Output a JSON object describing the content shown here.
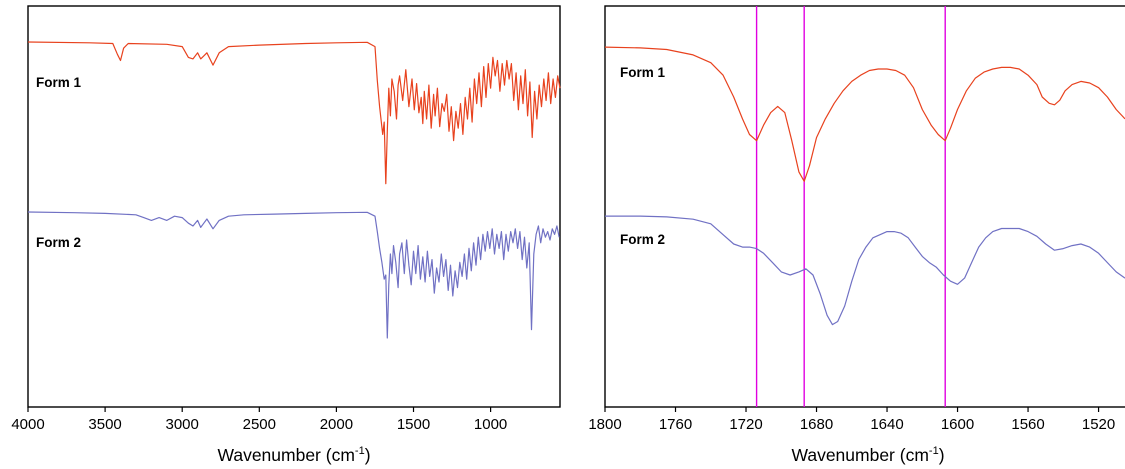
{
  "chart_data": [
    {
      "type": "line",
      "xlabel": "Wavenumber (cm",
      "xlabel_sup": "-1",
      "xlabel_close": ")",
      "xlim": [
        4000,
        550
      ],
      "xticks": [
        4000,
        3500,
        3000,
        2500,
        2000,
        1500,
        1000
      ],
      "ylabel": "",
      "grid": false,
      "series": [
        {
          "label": "Form 1",
          "color": "#e8421e",
          "x": [
            4000,
            3600,
            3450,
            3420,
            3400,
            3380,
            3350,
            3100,
            3000,
            2960,
            2930,
            2900,
            2880,
            2860,
            2840,
            2800,
            2760,
            2700,
            2500,
            2200,
            2000,
            1800,
            1750,
            1735,
            1720,
            1700,
            1690,
            1680,
            1670,
            1660,
            1650,
            1640,
            1625,
            1610,
            1600,
            1590,
            1570,
            1550,
            1530,
            1510,
            1495,
            1480,
            1465,
            1450,
            1440,
            1430,
            1415,
            1400,
            1385,
            1370,
            1360,
            1345,
            1330,
            1315,
            1300,
            1285,
            1270,
            1255,
            1240,
            1225,
            1210,
            1195,
            1180,
            1165,
            1150,
            1135,
            1120,
            1105,
            1090,
            1075,
            1060,
            1045,
            1030,
            1015,
            1000,
            985,
            970,
            955,
            940,
            925,
            910,
            895,
            880,
            865,
            850,
            835,
            820,
            805,
            790,
            775,
            760,
            745,
            730,
            715,
            700,
            685,
            670,
            655,
            640,
            625,
            610,
            595,
            580,
            565,
            550
          ],
          "y": [
            100,
            99.5,
            99,
            92,
            88,
            96,
            99,
            98.5,
            97,
            90,
            89,
            93,
            89,
            91,
            93,
            85,
            93,
            97,
            98,
            99,
            99.5,
            99.8,
            97,
            75,
            58,
            40,
            48,
            8,
            42,
            70,
            52,
            76,
            68,
            50,
            72,
            78,
            62,
            82,
            58,
            76,
            56,
            73,
            54,
            64,
            47,
            68,
            50,
            72,
            44,
            66,
            52,
            70,
            45,
            60,
            55,
            66,
            42,
            58,
            36,
            55,
            44,
            60,
            40,
            64,
            50,
            70,
            48,
            76,
            60,
            80,
            58,
            84,
            64,
            86,
            70,
            90,
            78,
            88,
            68,
            86,
            72,
            88,
            76,
            86,
            62,
            80,
            56,
            78,
            60,
            82,
            52,
            74,
            38,
            68,
            50,
            72,
            58,
            76,
            62,
            80,
            60,
            76,
            64,
            78,
            70
          ]
        },
        {
          "label": "Form 2",
          "color": "#7071c4",
          "x": [
            4000,
            3700,
            3500,
            3300,
            3250,
            3200,
            3150,
            3100,
            3050,
            3000,
            2960,
            2930,
            2900,
            2880,
            2860,
            2840,
            2800,
            2760,
            2700,
            2600,
            2400,
            2200,
            2000,
            1800,
            1750,
            1735,
            1720,
            1705,
            1690,
            1680,
            1670,
            1660,
            1650,
            1640,
            1630,
            1615,
            1600,
            1590,
            1575,
            1560,
            1545,
            1530,
            1515,
            1500,
            1485,
            1470,
            1455,
            1440,
            1425,
            1410,
            1395,
            1380,
            1365,
            1350,
            1335,
            1320,
            1305,
            1290,
            1275,
            1260,
            1245,
            1230,
            1215,
            1200,
            1185,
            1170,
            1155,
            1140,
            1125,
            1110,
            1095,
            1080,
            1065,
            1050,
            1035,
            1020,
            1005,
            990,
            975,
            960,
            945,
            930,
            915,
            900,
            885,
            870,
            855,
            840,
            825,
            810,
            795,
            780,
            765,
            750,
            735,
            720,
            705,
            690,
            675,
            660,
            645,
            630,
            615,
            600,
            585,
            570,
            555
          ],
          "y": [
            100,
            99.5,
            99,
            98,
            96,
            94,
            96,
            94,
            97,
            96,
            92,
            90,
            94,
            89,
            92,
            95,
            88,
            94,
            97,
            98,
            98.5,
            99,
            99.5,
            99.8,
            97,
            86,
            74,
            64,
            52,
            55,
            10,
            48,
            70,
            56,
            76,
            64,
            46,
            70,
            78,
            56,
            80,
            62,
            48,
            72,
            56,
            76,
            52,
            68,
            50,
            72,
            54,
            66,
            42,
            60,
            50,
            70,
            54,
            66,
            44,
            62,
            40,
            58,
            46,
            64,
            54,
            70,
            52,
            74,
            58,
            78,
            62,
            82,
            66,
            84,
            72,
            86,
            74,
            88,
            70,
            84,
            74,
            86,
            66,
            84,
            72,
            86,
            78,
            88,
            74,
            86,
            66,
            82,
            60,
            78,
            16,
            70,
            84,
            90,
            78,
            88,
            82,
            86,
            80,
            88,
            84,
            90,
            82
          ]
        }
      ]
    },
    {
      "type": "line",
      "xlabel": "Wavenumber (cm",
      "xlabel_sup": "-1",
      "xlabel_close": ")",
      "xlim": [
        1800,
        1505
      ],
      "xticks": [
        1800,
        1760,
        1720,
        1680,
        1640,
        1600,
        1560,
        1520
      ],
      "ylabel": "",
      "grid": false,
      "vertical_markers": [
        1714,
        1687,
        1607
      ],
      "marker_color": "#e000e0",
      "series": [
        {
          "label": "Form 1",
          "color": "#e8421e",
          "x": [
            1800,
            1780,
            1765,
            1750,
            1740,
            1733,
            1727,
            1722,
            1718,
            1714,
            1710,
            1706,
            1702,
            1698,
            1694,
            1690,
            1687,
            1684,
            1680,
            1675,
            1670,
            1665,
            1660,
            1655,
            1650,
            1645,
            1640,
            1635,
            1630,
            1625,
            1620,
            1615,
            1611,
            1607,
            1604,
            1600,
            1595,
            1590,
            1585,
            1580,
            1575,
            1570,
            1565,
            1560,
            1555,
            1552,
            1548,
            1545,
            1542,
            1539,
            1535,
            1530,
            1525,
            1520,
            1515,
            1510,
            1505
          ],
          "y": [
            98,
            97.5,
            96.5,
            93,
            88,
            80,
            66,
            52,
            42,
            38,
            48,
            56,
            60,
            56,
            38,
            18,
            12,
            22,
            40,
            52,
            62,
            70,
            76,
            80,
            83,
            84,
            84,
            83,
            80,
            72,
            58,
            48,
            42,
            38,
            46,
            58,
            70,
            78,
            82,
            84,
            85,
            85,
            84,
            80,
            74,
            66,
            62,
            61,
            64,
            70,
            74,
            76,
            75,
            72,
            66,
            58,
            52
          ]
        },
        {
          "label": "Form 2",
          "color": "#7071c4",
          "x": [
            1800,
            1780,
            1765,
            1750,
            1740,
            1733,
            1727,
            1722,
            1718,
            1714,
            1710,
            1705,
            1700,
            1695,
            1690,
            1686,
            1682,
            1678,
            1674,
            1671,
            1668,
            1664,
            1660,
            1656,
            1652,
            1648,
            1644,
            1640,
            1636,
            1632,
            1628,
            1624,
            1620,
            1616,
            1612,
            1608,
            1604,
            1600,
            1596,
            1592,
            1588,
            1584,
            1580,
            1575,
            1570,
            1565,
            1560,
            1555,
            1550,
            1545,
            1540,
            1535,
            1530,
            1525,
            1520,
            1515,
            1510,
            1505
          ],
          "y": [
            98,
            98,
            97.5,
            96,
            93,
            86,
            80,
            78,
            78,
            77,
            74,
            68,
            62,
            60,
            62,
            64,
            60,
            48,
            34,
            28,
            30,
            40,
            56,
            70,
            78,
            84,
            86,
            88,
            88,
            87,
            84,
            78,
            72,
            68,
            65,
            60,
            56,
            54,
            58,
            68,
            78,
            84,
            88,
            90,
            90,
            90,
            88,
            85,
            80,
            76,
            77,
            79,
            80,
            78,
            74,
            68,
            62,
            58
          ]
        }
      ]
    }
  ]
}
